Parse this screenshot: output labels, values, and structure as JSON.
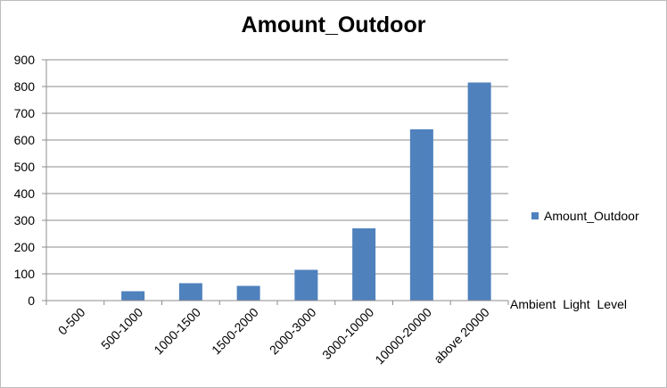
{
  "chart_data": {
    "type": "bar",
    "title": "Amount_Outdoor",
    "xlabel": "Ambient  Light  Level",
    "ylabel": "",
    "categories": [
      "0-500",
      "500-1000",
      "1000-1500",
      "1500-2000",
      "2000-3000",
      "3000-10000",
      "10000-20000",
      "above 20000"
    ],
    "series": [
      {
        "name": "Amount_Outdoor",
        "values": [
          0,
          35,
          65,
          55,
          115,
          270,
          640,
          815
        ]
      }
    ],
    "ylim": [
      0,
      900
    ],
    "yticks": [
      0,
      100,
      200,
      300,
      400,
      500,
      600,
      700,
      800,
      900
    ],
    "grid": true,
    "legend_position": "right",
    "colors": {
      "bar": "#4f81bd",
      "grid": "#8c8c8c",
      "axis": "#8c8c8c"
    }
  }
}
